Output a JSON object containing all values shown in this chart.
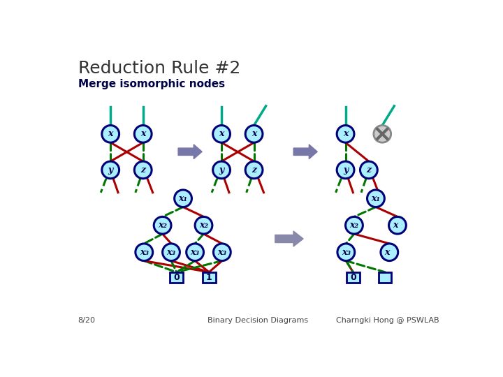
{
  "title": "Reduction Rule #2",
  "subtitle": "Merge isomorphic nodes",
  "footer_left": "8/20",
  "footer_center": "Binary Decision Diagrams",
  "footer_right": "Charngki Hong @ PSWLAB",
  "node_fill_light": "#aaeeff",
  "node_stroke_dark": "#000077",
  "line_green": "#007700",
  "line_red": "#aa0000",
  "line_teal": "#00aa88",
  "arrow_color": "#7777aa"
}
